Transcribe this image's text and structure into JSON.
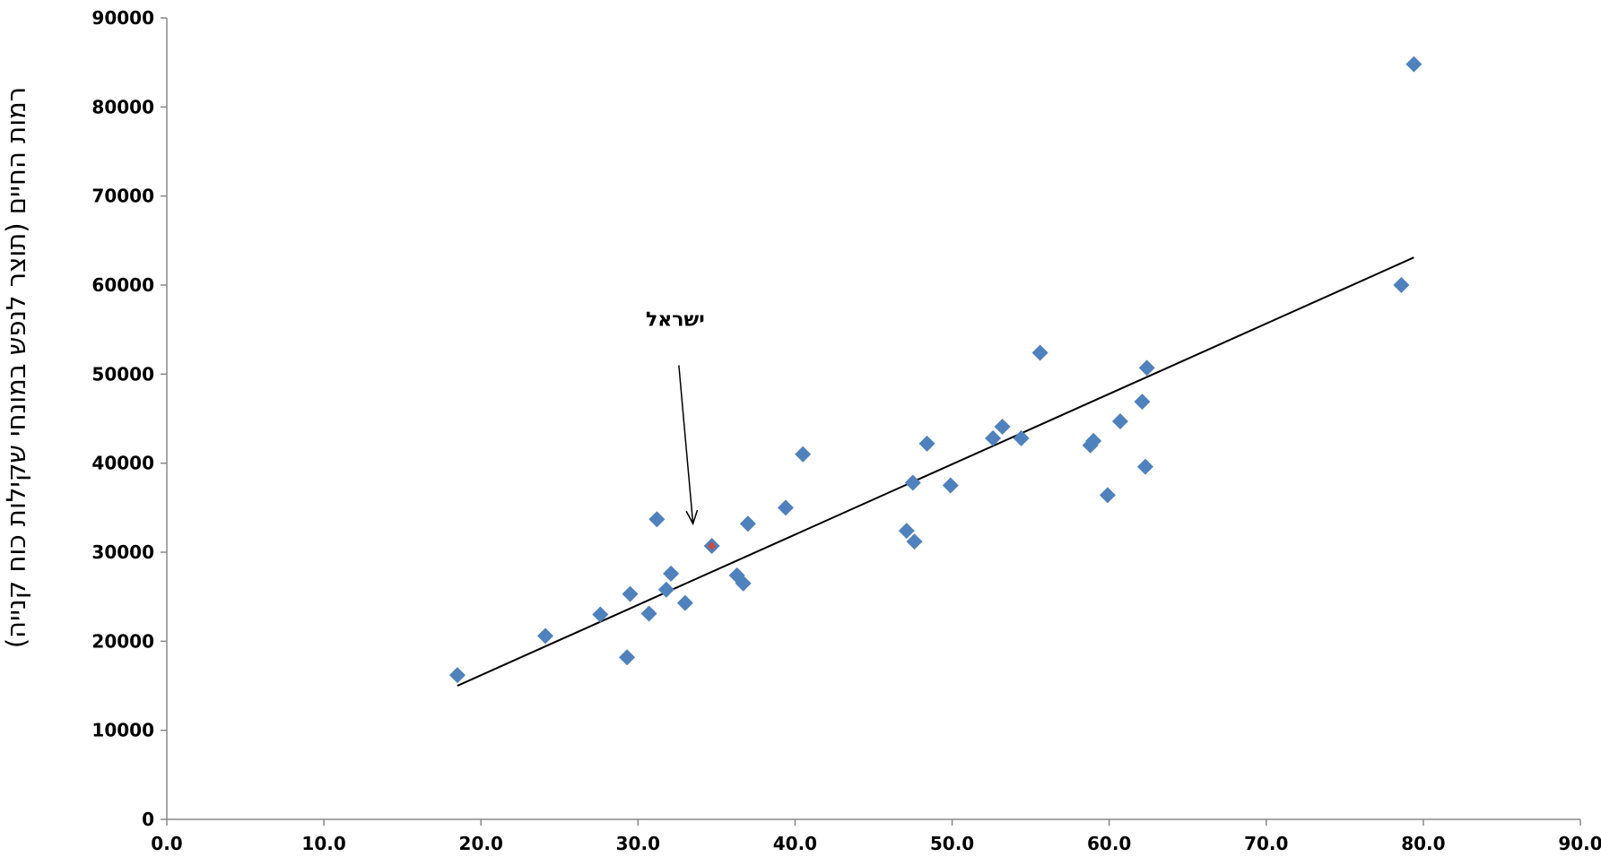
{
  "chart_data": {
    "type": "scatter",
    "title": "",
    "xlabel": "",
    "ylabel": "רמות החיים (תוצר לנפש במונחי שקילות כוח קנייה)",
    "xlim": [
      0,
      90
    ],
    "ylim": [
      0,
      90000
    ],
    "x_ticks": [
      "0.0",
      "10.0",
      "20.0",
      "30.0",
      "40.0",
      "50.0",
      "60.0",
      "70.0",
      "80.0",
      "90.0"
    ],
    "y_ticks": [
      "0",
      "10000",
      "20000",
      "30000",
      "40000",
      "50000",
      "60000",
      "70000",
      "80000",
      "90000"
    ],
    "grid": false,
    "legend": "none",
    "colors": {
      "points": "#4f81bd",
      "highlight": "#c0504d",
      "trendline": "#000000",
      "axis": "#888888"
    },
    "series": [
      {
        "points": [
          {
            "x": 18.5,
            "y": 16200
          },
          {
            "x": 24.1,
            "y": 20600
          },
          {
            "x": 27.6,
            "y": 23000
          },
          {
            "x": 29.3,
            "y": 18200
          },
          {
            "x": 29.5,
            "y": 25300
          },
          {
            "x": 30.7,
            "y": 23100
          },
          {
            "x": 31.2,
            "y": 33700
          },
          {
            "x": 31.8,
            "y": 25800
          },
          {
            "x": 32.1,
            "y": 27600
          },
          {
            "x": 33.0,
            "y": 24300
          },
          {
            "x": 36.3,
            "y": 27400
          },
          {
            "x": 36.7,
            "y": 26500
          },
          {
            "x": 37.0,
            "y": 33200
          },
          {
            "x": 39.4,
            "y": 35000
          },
          {
            "x": 40.5,
            "y": 41000
          },
          {
            "x": 47.1,
            "y": 32400
          },
          {
            "x": 47.5,
            "y": 37800
          },
          {
            "x": 47.6,
            "y": 31200
          },
          {
            "x": 48.4,
            "y": 42200
          },
          {
            "x": 49.9,
            "y": 37500
          },
          {
            "x": 52.6,
            "y": 42800
          },
          {
            "x": 53.2,
            "y": 44100
          },
          {
            "x": 54.4,
            "y": 42800
          },
          {
            "x": 55.6,
            "y": 52400
          },
          {
            "x": 58.8,
            "y": 42000
          },
          {
            "x": 59.0,
            "y": 42500
          },
          {
            "x": 59.9,
            "y": 36400
          },
          {
            "x": 60.7,
            "y": 44700
          },
          {
            "x": 62.1,
            "y": 46900
          },
          {
            "x": 62.3,
            "y": 39600
          },
          {
            "x": 62.4,
            "y": 50700
          },
          {
            "x": 78.6,
            "y": 60000
          },
          {
            "x": 79.4,
            "y": 84800
          }
        ]
      },
      {
        "name": "ישראל",
        "highlight": true,
        "points": [
          {
            "x": 34.7,
            "y": 30700
          }
        ]
      }
    ],
    "trendline": {
      "type": "linear",
      "from": {
        "x": 18.5,
        "y": 15000
      },
      "to": {
        "x": 79.4,
        "y": 63100
      }
    },
    "annotation": {
      "text": "ישראל",
      "arrow_from": {
        "x": 32.6,
        "y": 51000
      },
      "arrow_to": {
        "x": 33.5,
        "y": 33200
      }
    }
  }
}
